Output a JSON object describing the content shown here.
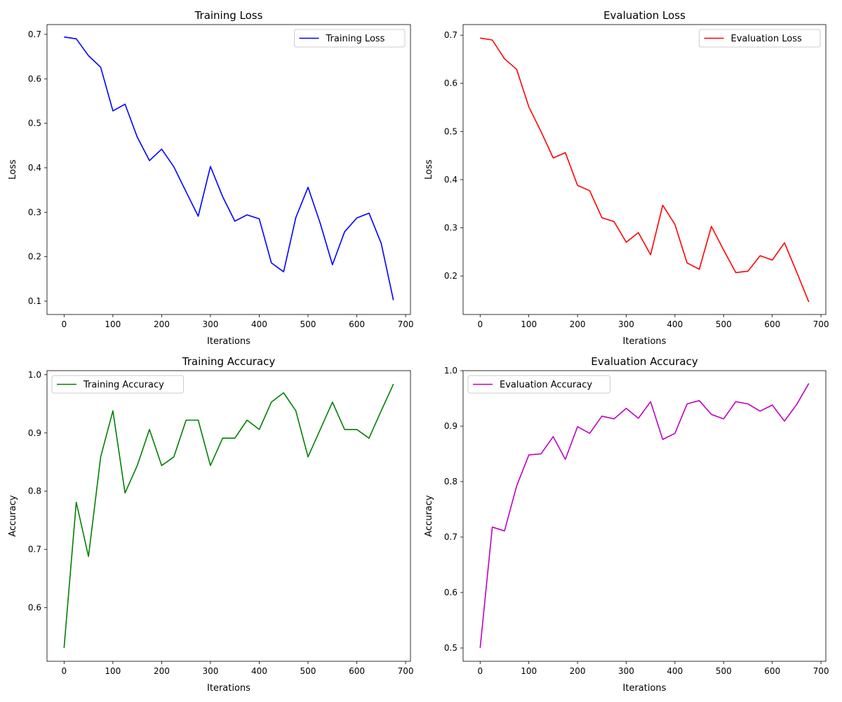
{
  "chart_data": [
    {
      "type": "line",
      "title": "Training Loss",
      "xlabel": "Iterations",
      "ylabel": "Loss",
      "xlim": [
        -35,
        710
      ],
      "ylim": [
        0.07,
        0.722
      ],
      "xticks": [
        0,
        100,
        200,
        300,
        400,
        500,
        600,
        700
      ],
      "yticks": [
        0.1,
        0.2,
        0.3,
        0.4,
        0.5,
        0.6,
        0.7
      ],
      "ytick_labels": [
        "0.1",
        "0.2",
        "0.3",
        "0.4",
        "0.5",
        "0.6",
        "0.7"
      ],
      "legend_position": "top-right",
      "grid": false,
      "series": [
        {
          "name": "Training Loss",
          "color": "#0000ff",
          "x": [
            0,
            25,
            50,
            75,
            100,
            125,
            150,
            175,
            200,
            225,
            250,
            275,
            300,
            325,
            350,
            375,
            400,
            425,
            450,
            475,
            500,
            525,
            550,
            575,
            600,
            625,
            650,
            675
          ],
          "y": [
            0.694,
            0.69,
            0.652,
            0.626,
            0.528,
            0.543,
            0.469,
            0.416,
            0.442,
            0.402,
            0.346,
            0.291,
            0.403,
            0.335,
            0.28,
            0.294,
            0.285,
            0.186,
            0.166,
            0.288,
            0.356,
            0.275,
            0.182,
            0.256,
            0.287,
            0.298,
            0.23,
            0.102
          ]
        }
      ]
    },
    {
      "type": "line",
      "title": "Evaluation Loss",
      "xlabel": "Iterations",
      "ylabel": "Loss",
      "xlim": [
        -35,
        710
      ],
      "ylim": [
        0.12,
        0.722
      ],
      "xticks": [
        0,
        100,
        200,
        300,
        400,
        500,
        600,
        700
      ],
      "yticks": [
        0.2,
        0.3,
        0.4,
        0.5,
        0.6,
        0.7
      ],
      "ytick_labels": [
        "0.2",
        "0.3",
        "0.4",
        "0.5",
        "0.6",
        "0.7"
      ],
      "legend_position": "top-right",
      "grid": false,
      "series": [
        {
          "name": "Evaluation Loss",
          "color": "#ff0000",
          "x": [
            0,
            25,
            50,
            75,
            100,
            125,
            150,
            175,
            200,
            225,
            250,
            275,
            300,
            325,
            350,
            375,
            400,
            425,
            450,
            475,
            500,
            525,
            550,
            575,
            600,
            625,
            650,
            675
          ],
          "y": [
            0.694,
            0.69,
            0.651,
            0.629,
            0.551,
            0.5,
            0.445,
            0.456,
            0.388,
            0.377,
            0.321,
            0.313,
            0.27,
            0.29,
            0.244,
            0.347,
            0.307,
            0.227,
            0.214,
            0.303,
            0.254,
            0.207,
            0.21,
            0.242,
            0.233,
            0.269,
            0.208,
            0.146
          ]
        }
      ]
    },
    {
      "type": "line",
      "title": "Training Accuracy",
      "xlabel": "Iterations",
      "ylabel": "Accuracy",
      "xlim": [
        -35,
        710
      ],
      "ylim": [
        0.508,
        1.007
      ],
      "xticks": [
        0,
        100,
        200,
        300,
        400,
        500,
        600,
        700
      ],
      "yticks": [
        0.6,
        0.7,
        0.8,
        0.9,
        1.0
      ],
      "ytick_labels": [
        "0.6",
        "0.7",
        "0.8",
        "0.9",
        "1.0"
      ],
      "legend_position": "top-left",
      "grid": false,
      "series": [
        {
          "name": "Training Accuracy",
          "color": "#008000",
          "x": [
            0,
            25,
            50,
            75,
            100,
            125,
            150,
            175,
            200,
            225,
            250,
            275,
            300,
            325,
            350,
            375,
            400,
            425,
            450,
            475,
            500,
            525,
            550,
            575,
            600,
            625,
            650,
            675
          ],
          "y": [
            0.531,
            0.781,
            0.688,
            0.859,
            0.938,
            0.797,
            0.844,
            0.906,
            0.844,
            0.859,
            0.922,
            0.922,
            0.844,
            0.891,
            0.891,
            0.922,
            0.906,
            0.953,
            0.969,
            0.938,
            0.859,
            0.906,
            0.953,
            0.906,
            0.906,
            0.891,
            0.938,
            0.984
          ]
        }
      ]
    },
    {
      "type": "line",
      "title": "Evaluation Accuracy",
      "xlabel": "Iterations",
      "ylabel": "Accuracy",
      "xlim": [
        -35,
        710
      ],
      "ylim": [
        0.476,
        1.0
      ],
      "xticks": [
        0,
        100,
        200,
        300,
        400,
        500,
        600,
        700
      ],
      "yticks": [
        0.5,
        0.6,
        0.7,
        0.8,
        0.9,
        1.0
      ],
      "ytick_labels": [
        "0.5",
        "0.6",
        "0.7",
        "0.8",
        "0.9",
        "1.0"
      ],
      "legend_position": "top-left",
      "grid": false,
      "series": [
        {
          "name": "Evaluation Accuracy",
          "color": "#bf00bf",
          "x": [
            0,
            25,
            50,
            75,
            100,
            125,
            150,
            175,
            200,
            225,
            250,
            275,
            300,
            325,
            350,
            375,
            400,
            425,
            450,
            475,
            500,
            525,
            550,
            575,
            600,
            625,
            650,
            675
          ],
          "y": [
            0.5,
            0.718,
            0.711,
            0.792,
            0.848,
            0.85,
            0.881,
            0.84,
            0.899,
            0.887,
            0.918,
            0.913,
            0.932,
            0.914,
            0.944,
            0.876,
            0.887,
            0.94,
            0.946,
            0.921,
            0.913,
            0.944,
            0.94,
            0.927,
            0.938,
            0.909,
            0.939,
            0.977
          ]
        }
      ]
    }
  ]
}
